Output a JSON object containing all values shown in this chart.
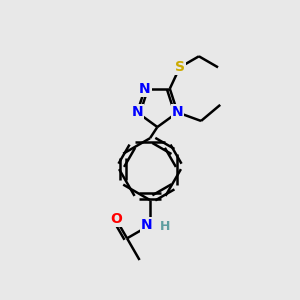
{
  "bg_color": "#e8e8e8",
  "atom_colors": {
    "N": "#0000ff",
    "O": "#ff0000",
    "S": "#ccaa00",
    "H": "#5f9ea0"
  },
  "bond_color": "#000000",
  "bond_width": 1.8,
  "font_size_atom": 10
}
